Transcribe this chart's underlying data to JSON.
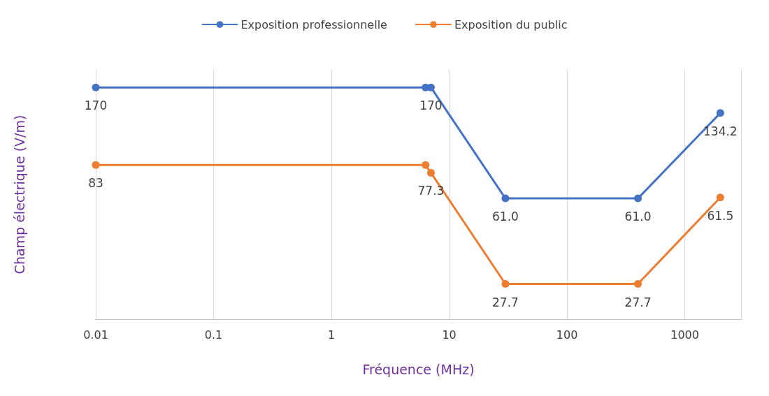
{
  "chart_data": {
    "type": "line",
    "xlabel": "Fréquence (MHz)",
    "ylabel": "Champ électrique (V/m)",
    "log": "xy",
    "xlim": [
      0.01,
      3000
    ],
    "xticks": [
      0.01,
      0.1,
      1,
      10,
      100,
      1000
    ],
    "ylim": [
      20,
      200
    ],
    "tick_labels": "x",
    "grid": "x",
    "legend": "top",
    "marker": "circle",
    "line_style": "solid",
    "series": [
      {
        "name": "Exposition professionnelle",
        "color": "#4472c4",
        "x": [
          0.01,
          6.3,
          7,
          30,
          400,
          2000
        ],
        "values": [
          170,
          170,
          170,
          61.0,
          61.0,
          134.2
        ],
        "value_labels": [
          "170",
          null,
          "170",
          "61.0",
          "61.0",
          "134.2"
        ]
      },
      {
        "name": "Exposition du public",
        "color": "#ed7d31",
        "x": [
          0.01,
          6.3,
          7,
          30,
          400,
          2000
        ],
        "values": [
          83,
          83,
          77.3,
          27.7,
          27.7,
          61.5
        ],
        "value_labels": [
          "83",
          null,
          "77.3",
          "27.7",
          "27.7",
          "61.5"
        ]
      }
    ]
  }
}
